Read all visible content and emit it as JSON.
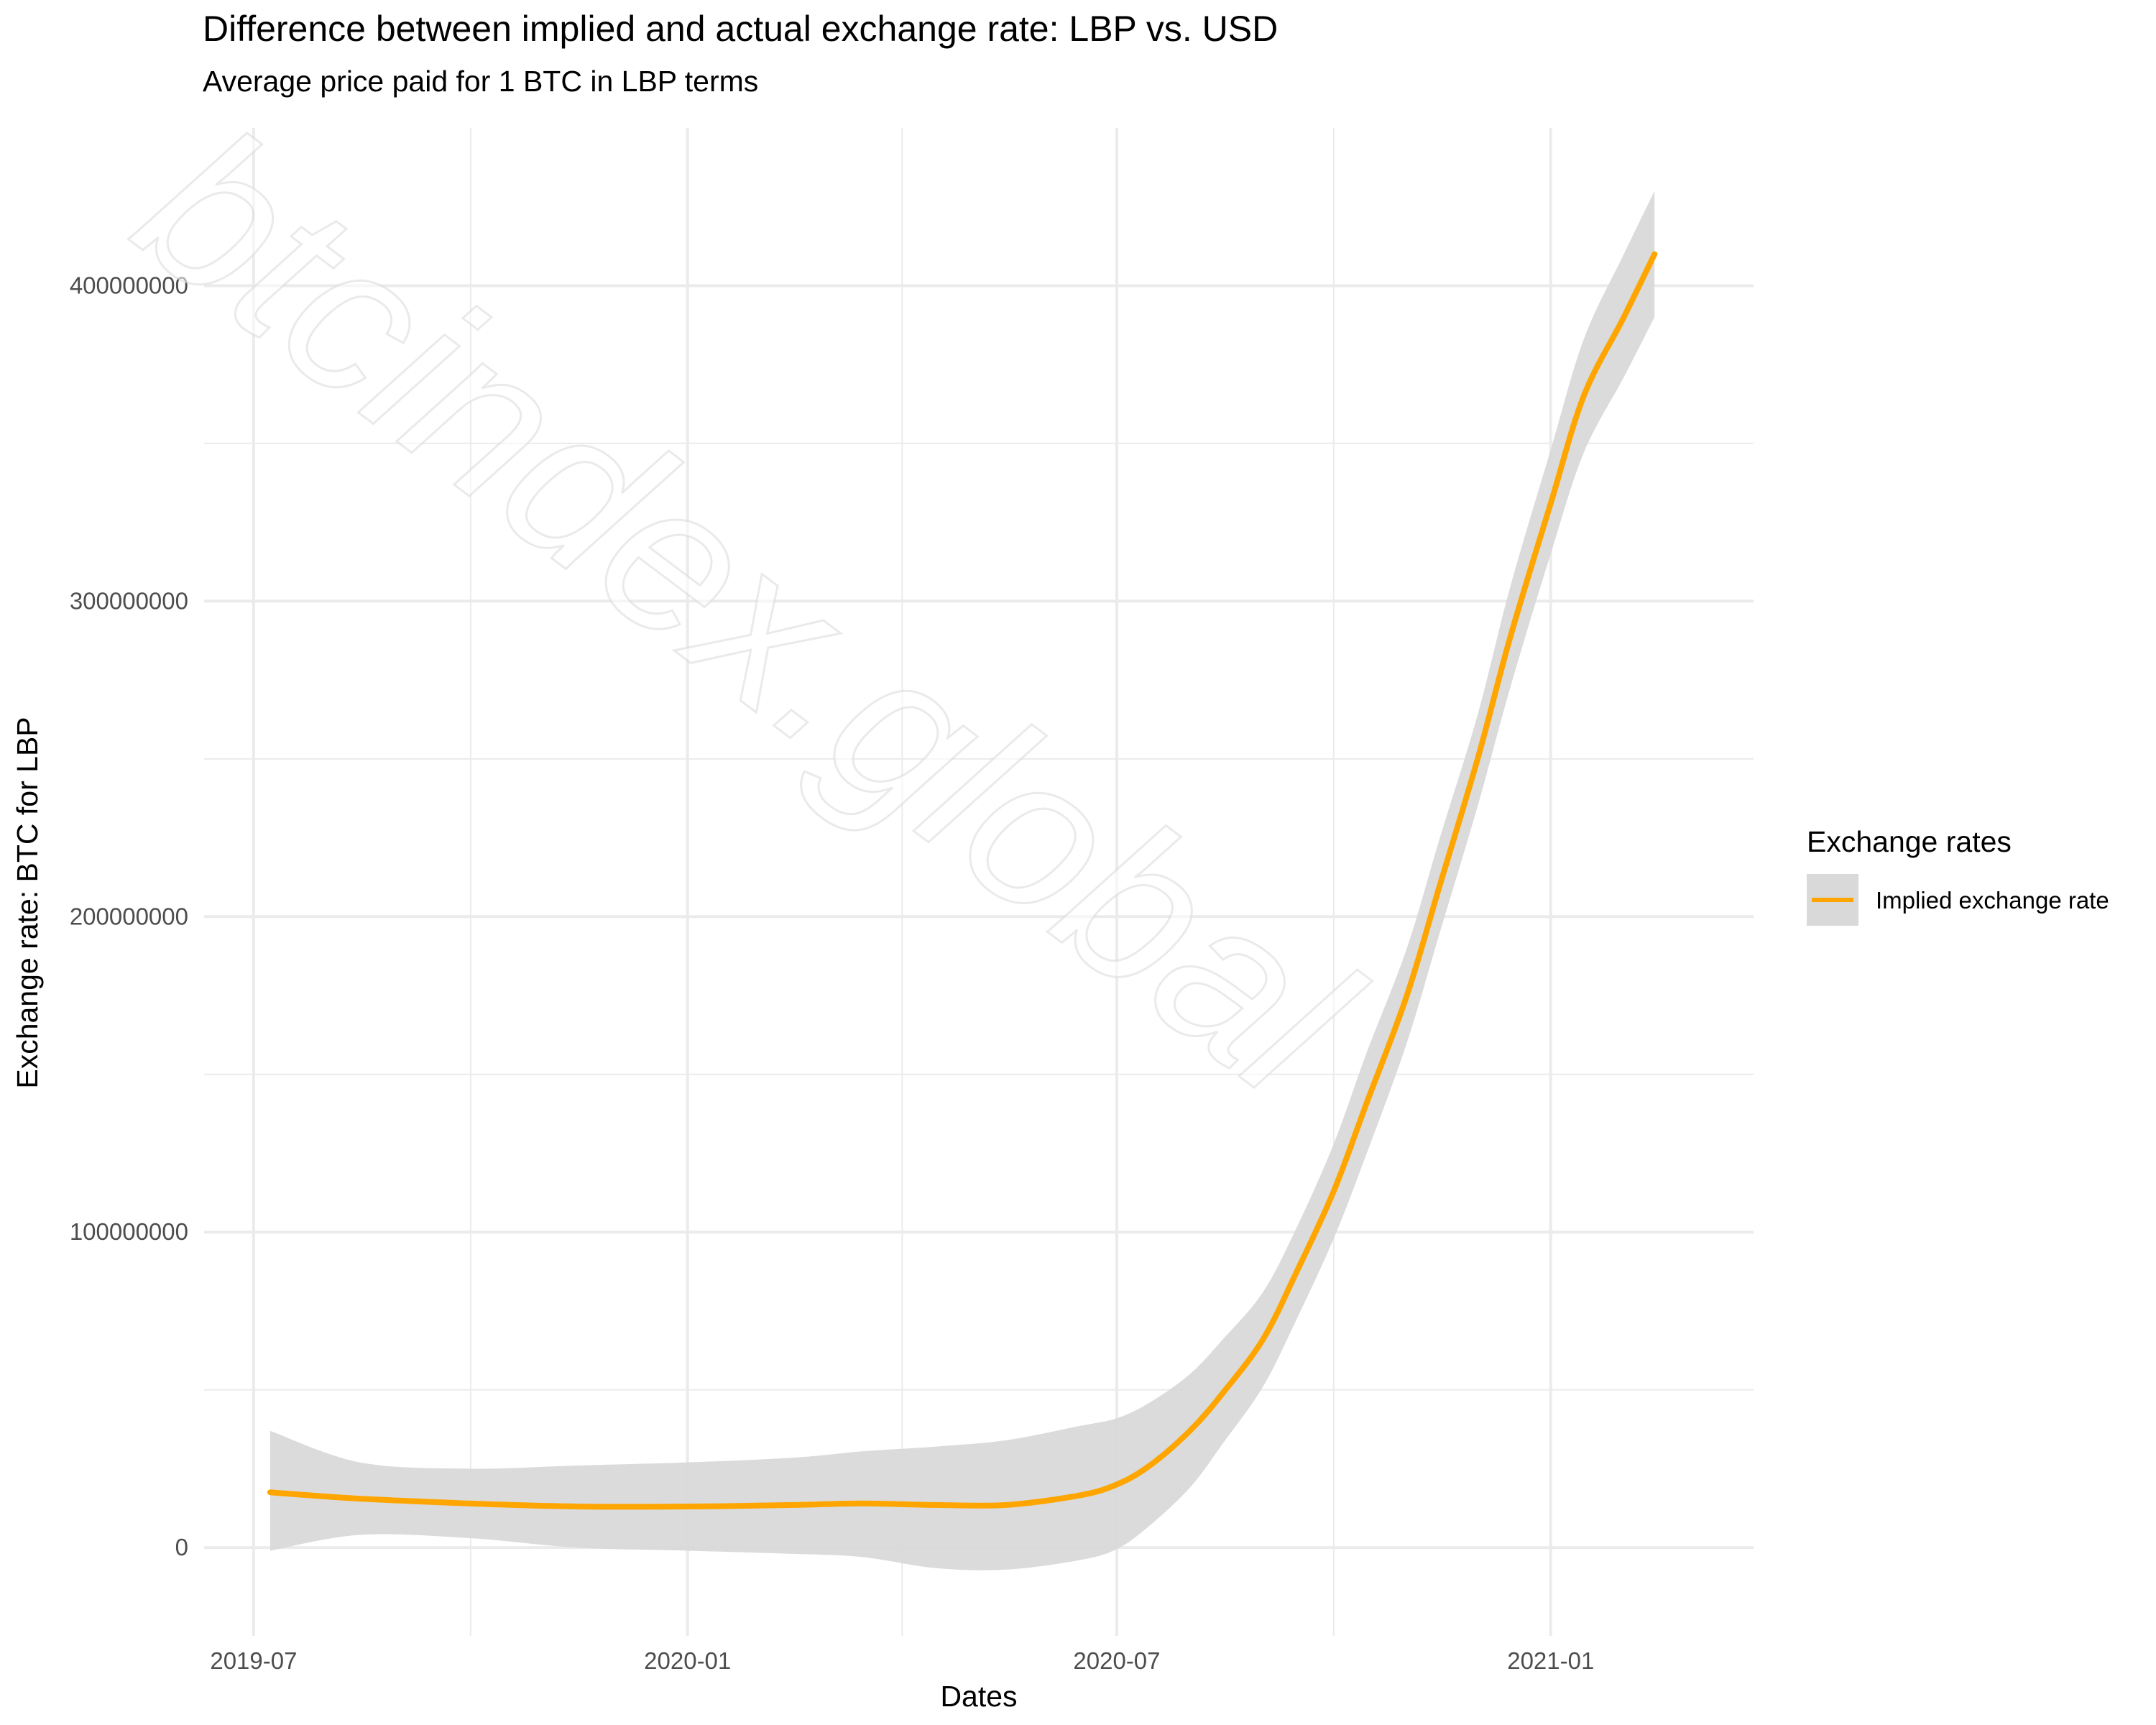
{
  "chart_data": {
    "type": "line",
    "title": "Difference between implied and actual exchange rate: LBP vs. USD",
    "subtitle": "Average price paid for 1 BTC in LBP terms",
    "xlabel": "Dates",
    "ylabel": "Exchange rate: BTC for LBP",
    "x_ticks": [
      "2019-07",
      "2020-01",
      "2020-07",
      "2021-01"
    ],
    "y_ticks": [
      0,
      100000000,
      200000000,
      300000000,
      400000000
    ],
    "y_tick_labels": [
      "0",
      "100000000",
      "200000000",
      "300000000",
      "400000000"
    ],
    "ylim": [
      -28000000,
      450000000
    ],
    "xlim": [
      "2019-06-10",
      "2021-03-28"
    ],
    "grid": true,
    "legend": {
      "title": "Exchange rates",
      "position": "right",
      "entries": [
        "Implied exchange rate"
      ]
    },
    "series": [
      {
        "name": "Implied exchange rate",
        "color": "#FFA500",
        "x": [
          "2019-07-08",
          "2019-08-15",
          "2019-09-30",
          "2019-11-15",
          "2020-01-01",
          "2020-02-15",
          "2020-03-15",
          "2020-04-15",
          "2020-05-15",
          "2020-06-15",
          "2020-07-01",
          "2020-07-15",
          "2020-08-01",
          "2020-08-15",
          "2020-09-01",
          "2020-09-15",
          "2020-10-01",
          "2020-10-15",
          "2020-11-01",
          "2020-11-15",
          "2020-12-01",
          "2020-12-15",
          "2021-01-01",
          "2021-01-15",
          "2021-02-01",
          "2021-02-14"
        ],
        "y": [
          17500000,
          15500000,
          14000000,
          13000000,
          13000000,
          13500000,
          14000000,
          13500000,
          13500000,
          16500000,
          20000000,
          26000000,
          37000000,
          49000000,
          66000000,
          87000000,
          113000000,
          141000000,
          175000000,
          210000000,
          250000000,
          289000000,
          331000000,
          365000000,
          390000000,
          410000000
        ],
        "ci_lower": [
          -1000000,
          4000000,
          3000000,
          0,
          -1000000,
          -2000000,
          -3000000,
          -6500000,
          -7000000,
          -4000000,
          -500000,
          7000000,
          19000000,
          33000000,
          51000000,
          72000000,
          98000000,
          125000000,
          160000000,
          195000000,
          235000000,
          273000000,
          315000000,
          347000000,
          371000000,
          390000000
        ],
        "ci_upper": [
          37000000,
          27000000,
          25000000,
          26000000,
          27000000,
          28500000,
          30500000,
          32000000,
          34000000,
          38500000,
          41000000,
          46000000,
          55000000,
          66000000,
          81000000,
          101000000,
          128000000,
          157000000,
          190000000,
          225000000,
          264000000,
          305000000,
          348000000,
          383000000,
          410000000,
          430000000
        ]
      }
    ],
    "watermark": "btcindex.global",
    "colors": {
      "line": "#FFA500",
      "ribbon": "#D9D9D9",
      "grid": "#EBEBEB"
    }
  }
}
